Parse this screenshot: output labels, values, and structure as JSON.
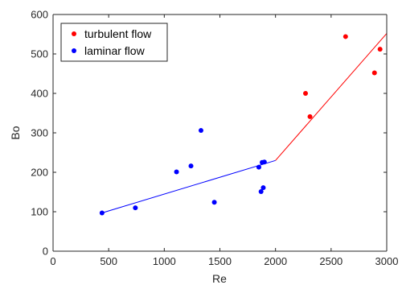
{
  "chart_data": {
    "type": "scatter",
    "xlabel": "Re",
    "ylabel": "Bo",
    "xlim": [
      0,
      3000
    ],
    "ylim": [
      0,
      600
    ],
    "xticks": [
      0,
      500,
      1000,
      1500,
      2000,
      2500,
      3000
    ],
    "yticks": [
      0,
      100,
      200,
      300,
      400,
      500,
      600
    ],
    "grid": false,
    "legend_position": "top-left",
    "series": [
      {
        "name": "turbulent flow",
        "color": "#ff0000",
        "points": [
          [
            2270,
            400
          ],
          [
            2310,
            341
          ],
          [
            2630,
            544
          ],
          [
            2890,
            452
          ],
          [
            2940,
            512
          ]
        ]
      },
      {
        "name": "laminar flow",
        "color": "#0000ff",
        "points": [
          [
            440,
            97
          ],
          [
            740,
            110
          ],
          [
            1110,
            201
          ],
          [
            1240,
            216
          ],
          [
            1330,
            306
          ],
          [
            1450,
            124
          ],
          [
            1850,
            213
          ],
          [
            1870,
            151
          ],
          [
            1880,
            225
          ],
          [
            1890,
            161
          ],
          [
            1900,
            226
          ]
        ]
      }
    ],
    "fit_lines": [
      {
        "series": "laminar flow",
        "color": "#0000ff",
        "x": [
          440,
          2000
        ],
        "y": [
          97,
          230
        ]
      },
      {
        "series": "turbulent flow",
        "color": "#ff0000",
        "x": [
          2000,
          3000
        ],
        "y": [
          230,
          552
        ]
      }
    ]
  }
}
